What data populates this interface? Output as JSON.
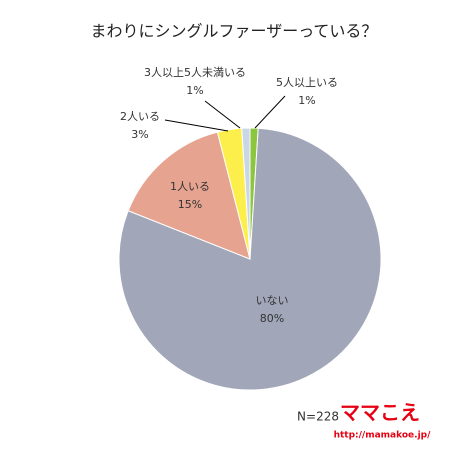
{
  "chart_data": {
    "type": "pie",
    "title": "まわりにシングルファーザーっている？",
    "categories": [
      "5人以上いる",
      "いない",
      "1人いる",
      "2人いる",
      "3人以上5人未満いる"
    ],
    "values": [
      1,
      80,
      15,
      3,
      1
    ],
    "value_labels": [
      "1%",
      "80%",
      "15%",
      "3%",
      "1%"
    ],
    "colors": [
      "#8cc63e",
      "#a1a6b9",
      "#e5a390",
      "#fdef4b",
      "#c9d6e6"
    ],
    "note": "N=228"
  },
  "logo": {
    "name": "ママこえ",
    "url": "http://mamakoe.jp/"
  }
}
